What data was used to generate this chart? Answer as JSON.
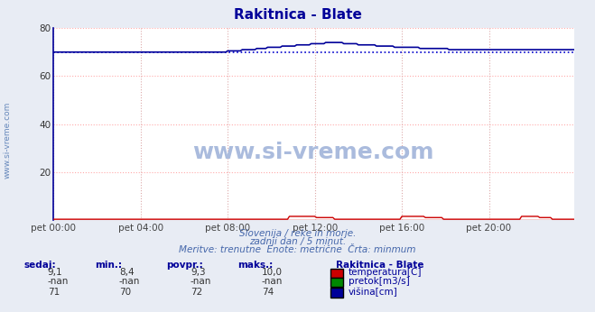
{
  "title": "Rakitnica - Blate",
  "bg_color": "#e8ecf4",
  "plot_bg_color": "#ffffff",
  "grid_color_h": "#ffaaaa",
  "grid_color_v": "#ddaaaa",
  "ylim": [
    0,
    80
  ],
  "xlim": [
    0,
    287
  ],
  "yticks": [
    20,
    40,
    60,
    80
  ],
  "xtick_labels": [
    "pet 00:00",
    "pet 04:00",
    "pet 08:00",
    "pet 12:00",
    "pet 16:00",
    "pet 20:00"
  ],
  "xtick_positions": [
    0,
    48,
    96,
    144,
    192,
    240
  ],
  "temp_color": "#cc0000",
  "flow_color": "#008800",
  "height_color": "#000099",
  "min_line_color": "#0000cc",
  "axis_left_color": "#000099",
  "axis_bottom_color": "#cc0000",
  "watermark": "www.si-vreme.com",
  "watermark_color": "#aabbdd",
  "subtitle1": "Slovenija / reke in morje.",
  "subtitle2": "zadnji dan / 5 minut.",
  "subtitle3": "Meritve: trenutne  Enote: metrične  Črta: minmum",
  "legend_title": "Rakitnica - Blate",
  "legend_items": [
    "temperatura[C]",
    "pretok[m3/s]",
    "višina[cm]"
  ],
  "legend_colors": [
    "#cc0000",
    "#008800",
    "#000099"
  ],
  "table_headers": [
    "sedaj:",
    "min.:",
    "povpr.:",
    "maks.:"
  ],
  "table_data": [
    [
      "9,1",
      "8,4",
      "9,3",
      "10,0"
    ],
    [
      "-nan",
      "-nan",
      "-nan",
      "-nan"
    ],
    [
      "71",
      "70",
      "72",
      "74"
    ]
  ],
  "ylabel_text": "www.si-vreme.com",
  "total_points": 288,
  "height_min_value": 70,
  "temp_scale_max": 10
}
